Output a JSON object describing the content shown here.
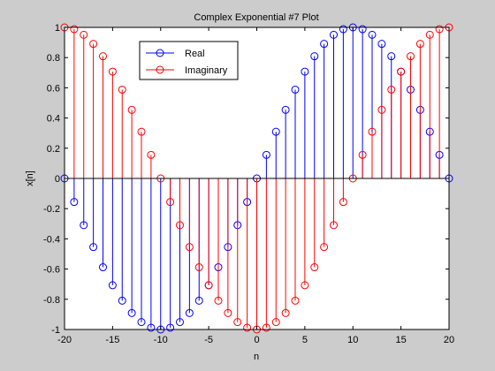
{
  "chart_data": {
    "type": "stem",
    "title": "Complex Exponential #7 Plot",
    "xlabel": "n",
    "ylabel": "x[n]",
    "xlim": [
      -20,
      20
    ],
    "ylim": [
      -1,
      1
    ],
    "x_ticks": [
      -20,
      -15,
      -10,
      -5,
      0,
      5,
      10,
      15,
      20
    ],
    "y_ticks": [
      -1,
      -0.8,
      -0.6,
      -0.4,
      -0.2,
      0,
      0.2,
      0.4,
      0.6,
      0.8,
      1
    ],
    "x_tick_labels": [
      "-20",
      "-15",
      "-10",
      "-5",
      "0",
      "5",
      "10",
      "15",
      "20"
    ],
    "y_tick_labels": [
      "-1",
      "-0.8",
      "-0.6",
      "-0.4",
      "-0.2",
      "0",
      "0.2",
      "0.4",
      "0.6",
      "0.8",
      "1"
    ],
    "grid": false,
    "legend_position": "top-left",
    "x": [
      -20,
      -19,
      -18,
      -17,
      -16,
      -15,
      -14,
      -13,
      -12,
      -11,
      -10,
      -9,
      -8,
      -7,
      -6,
      -5,
      -4,
      -3,
      -2,
      -1,
      0,
      1,
      2,
      3,
      4,
      5,
      6,
      7,
      8,
      9,
      10,
      11,
      12,
      13,
      14,
      15,
      16,
      17,
      18,
      19,
      20
    ],
    "series": [
      {
        "name": "Real",
        "color": "#0000ff",
        "values": [
          0,
          -0.156,
          -0.309,
          -0.454,
          -0.588,
          -0.707,
          -0.809,
          -0.891,
          -0.951,
          -0.988,
          -1.0,
          -0.988,
          -0.951,
          -0.891,
          -0.809,
          -0.707,
          -0.588,
          -0.454,
          -0.309,
          -0.156,
          0,
          0.156,
          0.309,
          0.454,
          0.588,
          0.707,
          0.809,
          0.891,
          0.951,
          0.988,
          1.0,
          0.988,
          0.951,
          0.891,
          0.809,
          0.707,
          0.588,
          0.454,
          0.309,
          0.156,
          0
        ]
      },
      {
        "name": "Imaginary",
        "color": "#ff0000",
        "values": [
          1.0,
          0.988,
          0.951,
          0.891,
          0.809,
          0.707,
          0.588,
          0.454,
          0.309,
          0.156,
          0,
          -0.156,
          -0.309,
          -0.454,
          -0.588,
          -0.707,
          -0.809,
          -0.891,
          -0.951,
          -0.988,
          -1.0,
          -0.988,
          -0.951,
          -0.891,
          -0.809,
          -0.707,
          -0.588,
          -0.454,
          -0.309,
          -0.156,
          0,
          0.156,
          0.309,
          0.454,
          0.588,
          0.707,
          0.809,
          0.891,
          0.951,
          0.988,
          1.0
        ]
      }
    ]
  }
}
